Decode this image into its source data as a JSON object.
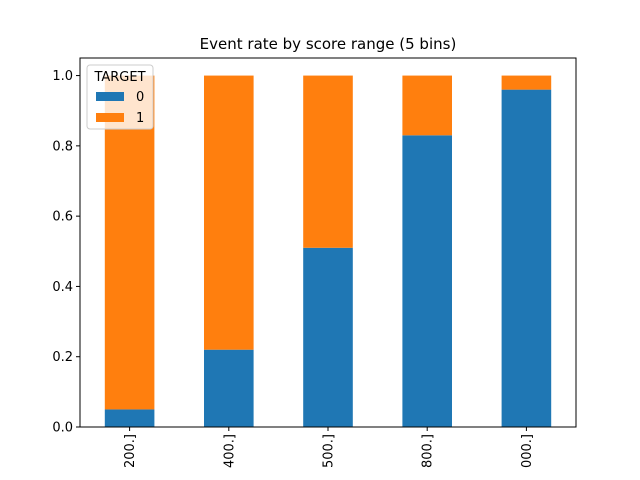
{
  "chart_data": {
    "type": "bar",
    "stacked": true,
    "title": "Event rate by score range (5 bins)",
    "xlabel": "",
    "ylabel": "",
    "categories": [
      "200.]",
      "400.]",
      "500.]",
      "800.]",
      "000.]"
    ],
    "series": [
      {
        "name": "0",
        "color": "#1f77b4",
        "values": [
          0.05,
          0.22,
          0.51,
          0.83,
          0.96
        ]
      },
      {
        "name": "1",
        "color": "#ff7f0e",
        "values": [
          0.95,
          0.78,
          0.49,
          0.17,
          0.04
        ]
      }
    ],
    "ylim": [
      0,
      1.05
    ],
    "yticks": [
      0.0,
      0.2,
      0.4,
      0.6,
      0.8,
      1.0
    ],
    "ytick_labels": [
      "0.0",
      "0.2",
      "0.4",
      "0.6",
      "0.8",
      "1.0"
    ],
    "legend": {
      "title": "TARGET",
      "position": "top-left"
    },
    "grid": false
  }
}
